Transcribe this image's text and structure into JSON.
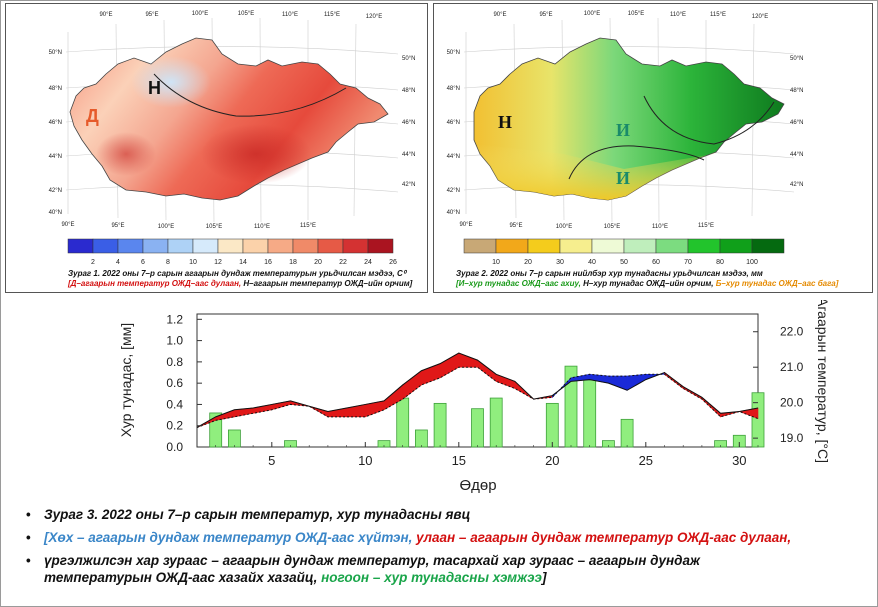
{
  "colors": {
    "blue": "#3a86c8",
    "red": "#d31010",
    "green": "#1aa54a",
    "orange": "#e58a00"
  },
  "map1": {
    "lon_ticks": [
      "90°E",
      "95°E",
      "100°E",
      "105°E",
      "110°E",
      "115°E",
      "120°E"
    ],
    "lon_ticks_bottom": [
      "90°E",
      "95°E",
      "100°E",
      "105°E",
      "110°E",
      "115°E"
    ],
    "lat_ticks_left": [
      "50°N",
      "48°N",
      "46°N",
      "44°N",
      "42°N",
      "40°N"
    ],
    "lat_ticks_right": [
      "50°N",
      "48°N",
      "46°N",
      "44°N",
      "42°N"
    ],
    "region_labels": [
      "Н",
      "Д"
    ],
    "colorbar": [
      "2",
      "4",
      "6",
      "8",
      "10",
      "12",
      "14",
      "16",
      "18",
      "20",
      "22",
      "24",
      "26"
    ],
    "caption_line1": "Зураг 1. 2022 оны 7–р сарын агаарын дундаж температурын урьдчилсан мэдээ, C⁰",
    "caption_red": "[Д–агаарын температур ОЖД–аас дулаан,",
    "caption_rest": " Н–агаарын температур ОЖД–ийн орчим]"
  },
  "map2": {
    "lon_ticks": [
      "90°E",
      "95°E",
      "100°E",
      "105°E",
      "110°E",
      "115°E",
      "120°E"
    ],
    "lon_ticks_bottom": [
      "90°E",
      "95°E",
      "100°E",
      "105°E",
      "110°E",
      "115°E"
    ],
    "lat_ticks_left": [
      "50°N",
      "48°N",
      "46°N",
      "44°N",
      "42°N",
      "40°N"
    ],
    "lat_ticks_right": [
      "50°N",
      "48°N",
      "46°N",
      "44°N",
      "42°N"
    ],
    "region_labels": [
      "Н",
      "И",
      "И"
    ],
    "colorbar": [
      "10",
      "20",
      "30",
      "40",
      "50",
      "60",
      "70",
      "80",
      "100"
    ],
    "caption_line1": "Зураг 2. 2022 оны 7–р сарын нийлбэр хур тунадасны урьдчилсан мэдээ, мм",
    "caption_green": "[И–хур тунадас ОЖД–аас ахиу,",
    "caption_mid": " Н–хур тунадас ОЖД–ийн орчим,",
    "caption_orange": " Б–хур тунадас ОЖД–аас бага]"
  },
  "chart_data": {
    "type": "bar",
    "xlabel": "Өдөр",
    "ylabel": "Хур тунадас, [мм]",
    "y2label": "Агаарын температур, [°C]",
    "x_ticks": [
      "5",
      "10",
      "15",
      "20",
      "25",
      "30"
    ],
    "y_ticks": [
      "0.0",
      "0.2",
      "0.4",
      "0.6",
      "0.8",
      "1.0",
      "1.2"
    ],
    "y2_ticks": [
      "19.0",
      "20.0",
      "21.0",
      "22.0"
    ],
    "xlim": [
      1,
      31
    ],
    "ylim": [
      0,
      1.25
    ],
    "y2lim": [
      18.75,
      22.5
    ],
    "series": [
      {
        "name": "Хур тунадас",
        "type": "bar",
        "x": [
          2,
          3,
          6,
          11,
          12,
          13,
          14,
          16,
          17,
          20,
          21,
          22,
          23,
          24,
          29,
          30,
          31
        ],
        "values": [
          0.32,
          0.16,
          0.06,
          0.06,
          0.46,
          0.16,
          0.41,
          0.36,
          0.46,
          0.41,
          0.76,
          0.63,
          0.06,
          0.26,
          0.06,
          0.11,
          0.51
        ]
      },
      {
        "name": "Агаарын дундаж температур",
        "type": "line",
        "x": [
          1,
          2,
          3,
          4,
          5,
          6,
          7,
          8,
          9,
          10,
          11,
          12,
          13,
          14,
          15,
          16,
          17,
          18,
          19,
          20,
          21,
          22,
          23,
          24,
          25,
          26,
          27,
          28,
          29,
          30,
          31
        ],
        "values": [
          19.3,
          19.6,
          19.8,
          19.85,
          19.95,
          20.05,
          19.9,
          19.75,
          19.85,
          19.95,
          20.05,
          20.5,
          20.9,
          21.1,
          21.4,
          21.2,
          20.8,
          20.6,
          20.1,
          20.2,
          20.6,
          20.65,
          20.55,
          20.35,
          20.65,
          20.85,
          20.45,
          20.15,
          19.7,
          19.75,
          19.85
        ]
      },
      {
        "name": "ОЖД",
        "type": "line",
        "x": [
          1,
          2,
          3,
          4,
          5,
          6,
          7,
          8,
          9,
          10,
          11,
          12,
          13,
          14,
          15,
          16,
          17,
          18,
          19,
          20,
          21,
          22,
          23,
          24,
          25,
          26,
          27,
          28,
          29,
          30,
          31
        ],
        "values": [
          19.3,
          19.5,
          19.6,
          19.7,
          19.8,
          19.95,
          19.9,
          19.6,
          19.6,
          19.6,
          19.8,
          20.1,
          20.5,
          20.7,
          21.0,
          21.0,
          20.6,
          20.4,
          20.1,
          20.15,
          20.7,
          20.8,
          20.75,
          20.75,
          20.8,
          20.8,
          20.4,
          20.1,
          19.6,
          19.75,
          19.55
        ]
      }
    ]
  },
  "bullets": {
    "line1": "Зураг 3. 2022 оны 7–р сарын температур, хур тунадасны явц",
    "line2_blue": "[Хөх – агаарын дундаж температур ОЖД-аас хүйтэн,",
    "line2_red": " улаан – агаарын дундаж температур ОЖД-аас дулаан,",
    "line3": "үргэлжилсэн хар зураас – агаарын дундаж температур, тасархай хар зураас – агаарын дундаж",
    "line4_a": "температурын ОЖД-аас хазайх хазайц,",
    "line4_green": " ногоон – хур тунадасны хэмжээ",
    "line4_end": "]"
  }
}
